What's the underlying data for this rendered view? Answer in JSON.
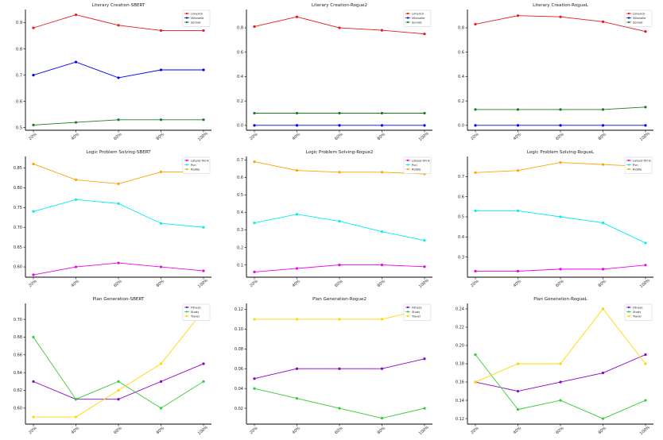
{
  "colors": {
    "Limerick": "#e41a1c",
    "Villanelle": "#0000ee",
    "Sonnet": "#1a7f1a",
    "Lateral": "#ee00ee",
    "Pun": "#00eeee",
    "Riddle": "#ffa500",
    "Fitness": "#8a00c8",
    "Study": "#33cc33",
    "Travel": "#ffd700"
  },
  "chart_data": [
    {
      "type": "line",
      "title": "Literary Creation-SBERT",
      "categories": [
        "20%",
        "40%",
        "60%",
        "80%",
        "100%"
      ],
      "ylim": [
        0.49,
        0.95
      ],
      "yticks": [
        "0.5",
        "0.6",
        "0.7",
        "0.8",
        "0.9"
      ],
      "ytick_values": [
        0.5,
        0.6,
        0.7,
        0.8,
        0.9
      ],
      "legend_position": "top-right",
      "series": [
        {
          "name": "Limerick",
          "color_key": "Limerick",
          "values": [
            0.88,
            0.93,
            0.89,
            0.87,
            0.87
          ]
        },
        {
          "name": "Villanelle",
          "color_key": "Villanelle",
          "values": [
            0.7,
            0.75,
            0.69,
            0.72,
            0.72
          ]
        },
        {
          "name": "Sonnet",
          "color_key": "Sonnet",
          "values": [
            0.51,
            0.52,
            0.53,
            0.53,
            0.53
          ]
        }
      ]
    },
    {
      "type": "line",
      "title": "Literary Creation-Rogue2",
      "categories": [
        "20%",
        "40%",
        "60%",
        "80%",
        "100%"
      ],
      "ylim": [
        -0.04,
        0.95
      ],
      "yticks": [
        "0.0",
        "0.2",
        "0.4",
        "0.6",
        "0.8"
      ],
      "ytick_values": [
        0.0,
        0.2,
        0.4,
        0.6,
        0.8
      ],
      "legend_position": "top-right",
      "series": [
        {
          "name": "Limerick",
          "color_key": "Limerick",
          "values": [
            0.81,
            0.89,
            0.8,
            0.78,
            0.75
          ]
        },
        {
          "name": "Villanelle",
          "color_key": "Villanelle",
          "values": [
            0.0,
            0.0,
            0.0,
            0.0,
            0.0
          ]
        },
        {
          "name": "Sonnet",
          "color_key": "Sonnet",
          "values": [
            0.1,
            0.1,
            0.1,
            0.1,
            0.1
          ]
        }
      ]
    },
    {
      "type": "line",
      "title": "Literary Creation-RogueL",
      "categories": [
        "20%",
        "40%",
        "60%",
        "80%",
        "100%"
      ],
      "ylim": [
        -0.04,
        0.95
      ],
      "yticks": [
        "0.0",
        "0.2",
        "0.4",
        "0.6",
        "0.8"
      ],
      "ytick_values": [
        0.0,
        0.2,
        0.4,
        0.6,
        0.8
      ],
      "legend_position": "top-right",
      "series": [
        {
          "name": "Limerick",
          "color_key": "Limerick",
          "values": [
            0.83,
            0.9,
            0.89,
            0.85,
            0.77
          ]
        },
        {
          "name": "Villanelle",
          "color_key": "Villanelle",
          "values": [
            0.0,
            0.0,
            0.0,
            0.0,
            0.0
          ]
        },
        {
          "name": "Sonnet",
          "color_key": "Sonnet",
          "values": [
            0.13,
            0.13,
            0.13,
            0.13,
            0.15
          ]
        }
      ]
    },
    {
      "type": "line",
      "title": "Logic Problem Solving-SBERT",
      "categories": [
        "20%",
        "40%",
        "60%",
        "80%",
        "100%"
      ],
      "ylim": [
        0.574,
        0.879
      ],
      "yticks": [
        "0.60",
        "0.65",
        "0.70",
        "0.75",
        "0.80",
        "0.85"
      ],
      "ytick_values": [
        0.6,
        0.65,
        0.7,
        0.75,
        0.8,
        0.85
      ],
      "legend_position": "top-right",
      "series": [
        {
          "name": "Lateral think",
          "color_key": "Lateral",
          "values": [
            0.58,
            0.6,
            0.61,
            0.6,
            0.59
          ]
        },
        {
          "name": "Pun",
          "color_key": "Pun",
          "values": [
            0.74,
            0.77,
            0.76,
            0.71,
            0.7
          ]
        },
        {
          "name": "Riddle",
          "color_key": "Riddle",
          "values": [
            0.86,
            0.82,
            0.81,
            0.84,
            0.84
          ]
        }
      ]
    },
    {
      "type": "line",
      "title": "Logic Problem Solving-Rogue2",
      "categories": [
        "20%",
        "40%",
        "60%",
        "80%",
        "100%"
      ],
      "ylim": [
        0.03,
        0.72
      ],
      "yticks": [
        "0.1",
        "0.2",
        "0.3",
        "0.4",
        "0.5",
        "0.6",
        "0.7"
      ],
      "ytick_values": [
        0.1,
        0.2,
        0.3,
        0.4,
        0.5,
        0.6,
        0.7
      ],
      "legend_position": "top-right",
      "series": [
        {
          "name": "Lateral think",
          "color_key": "Lateral",
          "values": [
            0.06,
            0.08,
            0.1,
            0.1,
            0.09
          ]
        },
        {
          "name": "Pun",
          "color_key": "Pun",
          "values": [
            0.34,
            0.39,
            0.35,
            0.29,
            0.24
          ]
        },
        {
          "name": "Riddle",
          "color_key": "Riddle",
          "values": [
            0.69,
            0.64,
            0.63,
            0.63,
            0.62
          ]
        }
      ]
    },
    {
      "type": "line",
      "title": "Logic Problem Solving-RogueL",
      "categories": [
        "20%",
        "40%",
        "60%",
        "80%",
        "100%"
      ],
      "ylim": [
        0.2,
        0.8
      ],
      "yticks": [
        "0.3",
        "0.4",
        "0.5",
        "0.6",
        "0.7"
      ],
      "ytick_values": [
        0.3,
        0.4,
        0.5,
        0.6,
        0.7
      ],
      "legend_position": "top-right",
      "series": [
        {
          "name": "Lateral think",
          "color_key": "Lateral",
          "values": [
            0.23,
            0.23,
            0.24,
            0.24,
            0.26
          ]
        },
        {
          "name": "Pun",
          "color_key": "Pun",
          "values": [
            0.53,
            0.53,
            0.5,
            0.47,
            0.37
          ]
        },
        {
          "name": "Riddle",
          "color_key": "Riddle",
          "values": [
            0.72,
            0.73,
            0.77,
            0.76,
            0.75
          ]
        }
      ]
    },
    {
      "type": "line",
      "title": "Plan Generation-SBERT",
      "categories": [
        "20%",
        "40%",
        "60%",
        "80%",
        "100%"
      ],
      "ylim": [
        0.582,
        0.718
      ],
      "yticks": [
        "0.60",
        "0.62",
        "0.64",
        "0.66",
        "0.68",
        "0.70"
      ],
      "ytick_values": [
        0.6,
        0.62,
        0.64,
        0.66,
        0.68,
        0.7
      ],
      "legend_position": "top-right",
      "series": [
        {
          "name": "Fitness",
          "color_key": "Fitness",
          "values": [
            0.63,
            0.61,
            0.61,
            0.63,
            0.65
          ]
        },
        {
          "name": "Study",
          "color_key": "Study",
          "values": [
            0.68,
            0.61,
            0.63,
            0.6,
            0.63
          ]
        },
        {
          "name": "Travel",
          "color_key": "Travel",
          "values": [
            0.59,
            0.59,
            0.62,
            0.65,
            0.71
          ]
        }
      ]
    },
    {
      "type": "line",
      "title": "Plan Generation-Rogue2",
      "categories": [
        "20%",
        "40%",
        "60%",
        "80%",
        "100%"
      ],
      "ylim": [
        0.004,
        0.126
      ],
      "yticks": [
        "0.02",
        "0.04",
        "0.06",
        "0.08",
        "0.10",
        "0.12"
      ],
      "ytick_values": [
        0.02,
        0.04,
        0.06,
        0.08,
        0.1,
        0.12
      ],
      "legend_position": "top-right",
      "series": [
        {
          "name": "Fitness",
          "color_key": "Fitness",
          "values": [
            0.05,
            0.06,
            0.06,
            0.06,
            0.07
          ]
        },
        {
          "name": "Study",
          "color_key": "Study",
          "values": [
            0.04,
            0.03,
            0.02,
            0.01,
            0.02
          ]
        },
        {
          "name": "Travel",
          "color_key": "Travel",
          "values": [
            0.11,
            0.11,
            0.11,
            0.11,
            0.12
          ]
        }
      ]
    },
    {
      "type": "line",
      "title": "Plan Generation-RogueL",
      "categories": [
        "20%",
        "40%",
        "60%",
        "80%",
        "100%"
      ],
      "ylim": [
        0.114,
        0.246
      ],
      "yticks": [
        "0.12",
        "0.14",
        "0.16",
        "0.18",
        "0.20",
        "0.22",
        "0.24"
      ],
      "ytick_values": [
        0.12,
        0.14,
        0.16,
        0.18,
        0.2,
        0.22,
        0.24
      ],
      "legend_position": "top-right",
      "series": [
        {
          "name": "Fitness",
          "color_key": "Fitness",
          "values": [
            0.16,
            0.15,
            0.16,
            0.17,
            0.19
          ]
        },
        {
          "name": "Study",
          "color_key": "Study",
          "values": [
            0.19,
            0.13,
            0.14,
            0.12,
            0.14
          ]
        },
        {
          "name": "Travel",
          "color_key": "Travel",
          "values": [
            0.16,
            0.18,
            0.18,
            0.24,
            0.18
          ]
        }
      ]
    }
  ]
}
